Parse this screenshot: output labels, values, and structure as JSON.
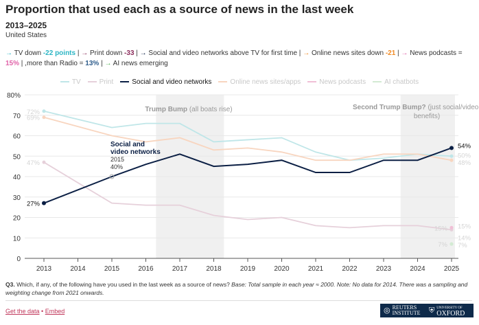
{
  "title": "Proportion that used each as a source of news in the last week",
  "subtitle": "2013–2025",
  "country": "United States",
  "summary": [
    {
      "arrow": "→",
      "color": "#2bb5c4",
      "text": " TV down ",
      "hl": "-22 points"
    },
    {
      "arrow": "→",
      "color": "#8a2c5a",
      "text": " Print down ",
      "hl": "-33"
    },
    {
      "arrow": "→",
      "color": "#0b1f44",
      "text": " Social and video networks above TV for first time",
      "hl": ""
    },
    {
      "arrow": "→",
      "color": "#f08a24",
      "text": " Online news sites down ",
      "hl": "-21"
    },
    {
      "arrow": "→",
      "color": "#e062a8",
      "text": " News podcasts = ",
      "hl": "15%"
    },
    {
      "arrow": "",
      "color": "#2f5d8c",
      "text": "more than Radio = ",
      "hl": "13%"
    },
    {
      "arrow": "→",
      "color": "#4caf50",
      "text": " AI news emerging",
      "hl": ""
    }
  ],
  "chart_data": {
    "type": "line",
    "x": [
      2013,
      2014,
      2015,
      2016,
      2017,
      2018,
      2019,
      2020,
      2021,
      2022,
      2023,
      2024,
      2025
    ],
    "ylim": [
      0,
      80
    ],
    "yticks": [
      0,
      10,
      20,
      30,
      40,
      50,
      60,
      70,
      80
    ],
    "ytick_labels": [
      "0",
      "10",
      "20",
      "30",
      "40",
      "50",
      "60",
      "70",
      "80%"
    ],
    "grid": true,
    "legend": "top",
    "series": [
      {
        "name": "TV",
        "color": "#bfe6e8",
        "values": [
          72,
          null,
          64,
          66,
          66,
          57,
          58,
          59,
          52,
          48,
          49,
          51,
          50
        ],
        "start_label": "72%",
        "end_label": "50%"
      },
      {
        "name": "Print",
        "color": "#e6d0da",
        "values": [
          47,
          null,
          27,
          26,
          26,
          21,
          19,
          20,
          16,
          15,
          16,
          16,
          14
        ],
        "start_label": "47%",
        "end_label": "14%"
      },
      {
        "name": "Social and video networks",
        "color": "#0b1f44",
        "values": [
          27,
          null,
          40,
          46,
          51,
          45,
          46,
          48,
          42,
          42,
          48,
          48,
          54
        ],
        "start_label": "27%",
        "end_label": "54%",
        "highlight": true
      },
      {
        "name": "Online news sites/apps",
        "color": "#f8d5bf",
        "values": [
          69,
          null,
          60,
          57,
          59,
          53,
          54,
          52,
          48,
          48,
          51,
          51,
          48
        ],
        "start_label": "69%",
        "end_label": "48%"
      },
      {
        "name": "News podcasts",
        "color": "#f0bfd6",
        "values": [
          null,
          null,
          null,
          null,
          null,
          null,
          null,
          null,
          null,
          null,
          null,
          null,
          15
        ],
        "start_label": "15%",
        "end_label": "15%"
      },
      {
        "name": "AI chatbots",
        "color": "#d3ead3",
        "values": [
          null,
          null,
          null,
          null,
          null,
          null,
          null,
          null,
          null,
          null,
          null,
          null,
          7
        ],
        "start_label": "7%",
        "end_label": "7%"
      }
    ],
    "annotations": [
      {
        "type": "band",
        "from": 2016.3,
        "to": 2018.3,
        "label_bold": "Trump Bump",
        "label": " (all boats rise)"
      },
      {
        "type": "band",
        "from": 2023.5,
        "to": 2025.1,
        "label_bold": "Second Trump Bump?",
        "label": " (just social/video",
        "label2": "benefits)"
      },
      {
        "type": "point",
        "series": "Social and video networks",
        "line1": "Social and",
        "line2": "video networks",
        "year": "2015",
        "value": "40%"
      }
    ]
  },
  "footnote": {
    "q": "Q3.",
    "text": " Which, if any, of the following have you used in the last week as a source of news? ",
    "italic": "Base: Total sample in each year ≈ 2000. Note: No data for 2014. There was a sampling and weighting change from 2021 onwards."
  },
  "links": {
    "data": "Get the data",
    "sep": " • ",
    "embed": "Embed"
  },
  "logos": {
    "reuters1": "REUTERS",
    "reuters2": "INSTITUTE",
    "oxford1": "UNIVERSITY OF",
    "oxford2": "OXFORD"
  }
}
